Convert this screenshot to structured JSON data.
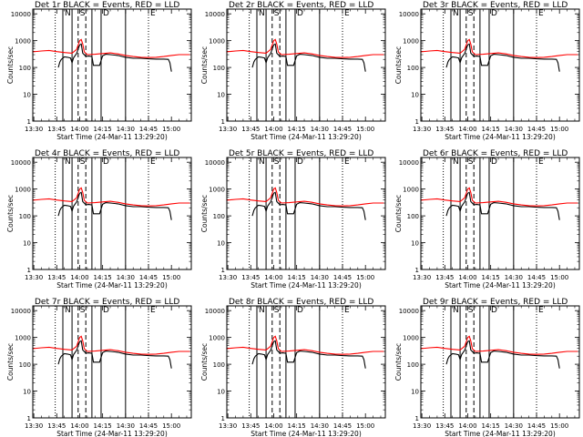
{
  "chart_data": {
    "type": "line",
    "panels": [
      {
        "title": "Det 1r  BLACK = Events, RED = LLD",
        "xlabel": "Start Time (24-Mar-11 13:29:20)",
        "ylabel": "Counts/sec"
      },
      {
        "title": "Det 2r  BLACK = Events, RED = LLD",
        "xlabel": "Start Time (24-Mar-11 13:29:20)",
        "ylabel": "Counts/sec"
      },
      {
        "title": "Det 3r  BLACK = Events, RED = LLD",
        "xlabel": "Start Time (24-Mar-11 13:29:20)",
        "ylabel": "Counts/sec"
      },
      {
        "title": "Det 4r  BLACK = Events, RED = LLD",
        "xlabel": "Start Time (24-Mar-11 13:29:20)",
        "ylabel": "Counts/sec"
      },
      {
        "title": "Det 5r  BLACK = Events, RED = LLD",
        "xlabel": "Start Time (24-Mar-11 13:29:20)",
        "ylabel": "Counts/sec"
      },
      {
        "title": "Det 6r  BLACK = Events, RED = LLD",
        "xlabel": "Start Time (24-Mar-11 13:29:20)",
        "ylabel": "Counts/sec"
      },
      {
        "title": "Det 7r  BLACK = Events, RED = LLD",
        "xlabel": "Start Time (24-Mar-11 13:29:20)",
        "ylabel": "Counts/sec"
      },
      {
        "title": "Det 8r  BLACK = Events, RED = LLD",
        "xlabel": "Start Time (24-Mar-11 13:29:20)",
        "ylabel": "Counts/sec"
      },
      {
        "title": "Det 9r  BLACK = Events, RED = LLD",
        "xlabel": "Start Time (24-Mar-11 13:29:20)",
        "ylabel": "Counts/sec"
      }
    ],
    "xlim": [
      "13:29:20",
      "15:13"
    ],
    "x_tick_labels": [
      "13:30",
      "13:45",
      "14:00",
      "14:15",
      "14:30",
      "14:45",
      "15:00"
    ],
    "yscale": "log",
    "ylim": [
      1,
      15000
    ],
    "y_tick_labels": [
      "1",
      "10",
      "100",
      "1000",
      "10000"
    ],
    "markers": [
      {
        "time": "13:44",
        "style": "dotted",
        "label": ""
      },
      {
        "time": "13:49",
        "style": "solid",
        "label": "N"
      },
      {
        "time": "13:55",
        "style": "solid",
        "label": ""
      },
      {
        "time": "13:59",
        "style": "dashed",
        "label": "S"
      },
      {
        "time": "14:04",
        "style": "dashed",
        "label": ""
      },
      {
        "time": "14:08",
        "style": "solid",
        "label": ""
      },
      {
        "time": "14:14",
        "style": "solid",
        "label": "D"
      },
      {
        "time": "14:30",
        "style": "solid",
        "label": ""
      },
      {
        "time": "14:45",
        "style": "dotted",
        "label": "E"
      }
    ],
    "panel_markers": [
      [
        "13:44",
        "13:49",
        "13:55",
        "13:59",
        "14:04",
        "14:08",
        "14:14",
        "14:30",
        "14:45"
      ],
      [
        "13:44",
        "13:49",
        "13:55",
        "13:59",
        "14:04",
        "14:08",
        "14:14",
        "14:30",
        "14:45"
      ],
      [
        "13:44",
        "13:49",
        "13:55",
        "13:59",
        "14:04",
        "14:08",
        "14:14",
        "14:30",
        "14:45"
      ],
      [
        "13:44",
        "13:49",
        "13:55",
        "13:59",
        "14:04",
        "14:08",
        "14:14",
        "14:30",
        "14:45"
      ],
      [
        "13:44",
        "13:49",
        "13:55",
        "13:59",
        "14:04",
        "14:08",
        "14:14",
        "14:30",
        "14:45"
      ],
      [
        "13:44",
        "13:49",
        "13:55",
        "13:59",
        "14:04",
        "14:08",
        "14:14",
        "14:30",
        "14:45"
      ],
      [
        "13:44",
        "13:49",
        "13:55",
        "13:59",
        "14:04",
        "14:08",
        "14:14",
        "14:30",
        "14:45"
      ],
      [
        "13:44",
        "13:49",
        "13:55",
        "13:59",
        "14:04",
        "14:08",
        "14:14",
        "14:30",
        "14:45"
      ],
      [
        "13:44",
        "13:49",
        "13:55",
        "13:59",
        "14:04",
        "14:08",
        "14:14",
        "14:30",
        "14:45"
      ]
    ],
    "series": [
      {
        "legend": "BLACK = Events",
        "color": "#000000",
        "times": [
          "13:46",
          "13:47",
          "13:48",
          "13:50",
          "13:52",
          "13:54",
          "13:55",
          "13:56",
          "13:58",
          "14:00",
          "14:01",
          "14:02",
          "14:04",
          "14:06",
          "14:08",
          "14:09",
          "14:11",
          "14:13",
          "14:15",
          "14:17",
          "14:20",
          "14:25",
          "14:30",
          "14:35",
          "14:40",
          "14:45",
          "14:50",
          "14:55",
          "14:58",
          "14:59",
          "15:00"
        ],
        "values": [
          100,
          160,
          200,
          250,
          240,
          225,
          150,
          230,
          330,
          700,
          750,
          340,
          260,
          265,
          255,
          120,
          120,
          120,
          270,
          310,
          300,
          280,
          240,
          220,
          220,
          210,
          205,
          205,
          200,
          150,
          70
        ]
      },
      {
        "legend": "RED = LLD",
        "color": "#ff0000",
        "times": [
          "13:29",
          "13:35",
          "13:40",
          "13:45",
          "13:50",
          "13:55",
          "13:58",
          "14:00",
          "14:01",
          "14:02",
          "14:03",
          "14:05",
          "14:10",
          "14:15",
          "14:20",
          "14:25",
          "14:30",
          "14:35",
          "14:40",
          "14:45",
          "14:50",
          "14:55",
          "15:00",
          "15:05",
          "15:12"
        ],
        "values": [
          380,
          410,
          430,
          390,
          360,
          340,
          470,
          1000,
          1100,
          750,
          380,
          300,
          310,
          330,
          350,
          320,
          280,
          255,
          240,
          235,
          240,
          255,
          280,
          300,
          300
        ]
      }
    ]
  }
}
